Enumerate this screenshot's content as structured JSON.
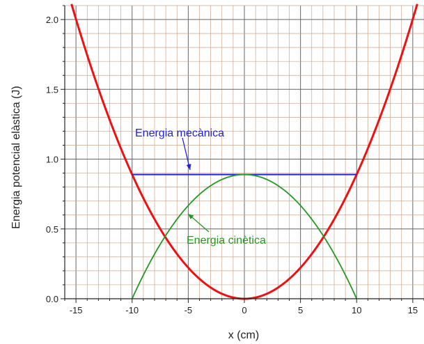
{
  "chart_data": {
    "type": "line",
    "title": "",
    "xlabel": "x (cm)",
    "ylabel": "Energia potencial elàstica (J)",
    "xlim": [
      -16,
      16
    ],
    "ylim": [
      0,
      2.1
    ],
    "x_ticks": [
      -15,
      -10,
      -5,
      0,
      5,
      10,
      15
    ],
    "y_ticks": [
      0.0,
      0.5,
      1.0,
      1.5,
      2.0
    ],
    "x_tick_labels": [
      "-15",
      "-10",
      "-5",
      "0",
      "5",
      "10",
      "15"
    ],
    "y_tick_labels": [
      "0.0",
      "0.5",
      "1.0",
      "1.5",
      "2.0"
    ],
    "grid": true,
    "series": [
      {
        "name": "",
        "color": "#ee1111",
        "formula": "y = 0.0089 * x^2",
        "x": [
          -15.4,
          -14,
          -12,
          -10,
          -8,
          -6,
          -4,
          -2,
          0,
          2,
          4,
          6,
          8,
          10,
          12,
          14,
          15.4
        ],
        "values": [
          2.11,
          1.744,
          1.282,
          0.89,
          0.57,
          0.32,
          0.142,
          0.036,
          0.0,
          0.036,
          0.142,
          0.32,
          0.57,
          0.89,
          1.282,
          1.744,
          2.11
        ]
      },
      {
        "name": "Energia mecànica",
        "color": "#2222dd",
        "x": [
          -10,
          10
        ],
        "values": [
          0.89,
          0.89
        ]
      },
      {
        "name": "Energia cinètica",
        "color": "#229922",
        "formula": "y = 0.89 - 0.0089 * x^2",
        "x": [
          -10,
          -8,
          -6,
          -4,
          -2,
          0,
          2,
          4,
          6,
          8,
          10
        ],
        "values": [
          0.0,
          0.32,
          0.57,
          0.748,
          0.854,
          0.89,
          0.854,
          0.748,
          0.57,
          0.32,
          0.0
        ]
      }
    ],
    "annotations": [
      {
        "text": "Energia mecànica",
        "color": "#2222dd",
        "points_to": [
          -4.9,
          0.9
        ]
      },
      {
        "text": "Energia cinètica",
        "color": "#229922",
        "points_to": [
          -3.2,
          0.6
        ]
      }
    ]
  }
}
